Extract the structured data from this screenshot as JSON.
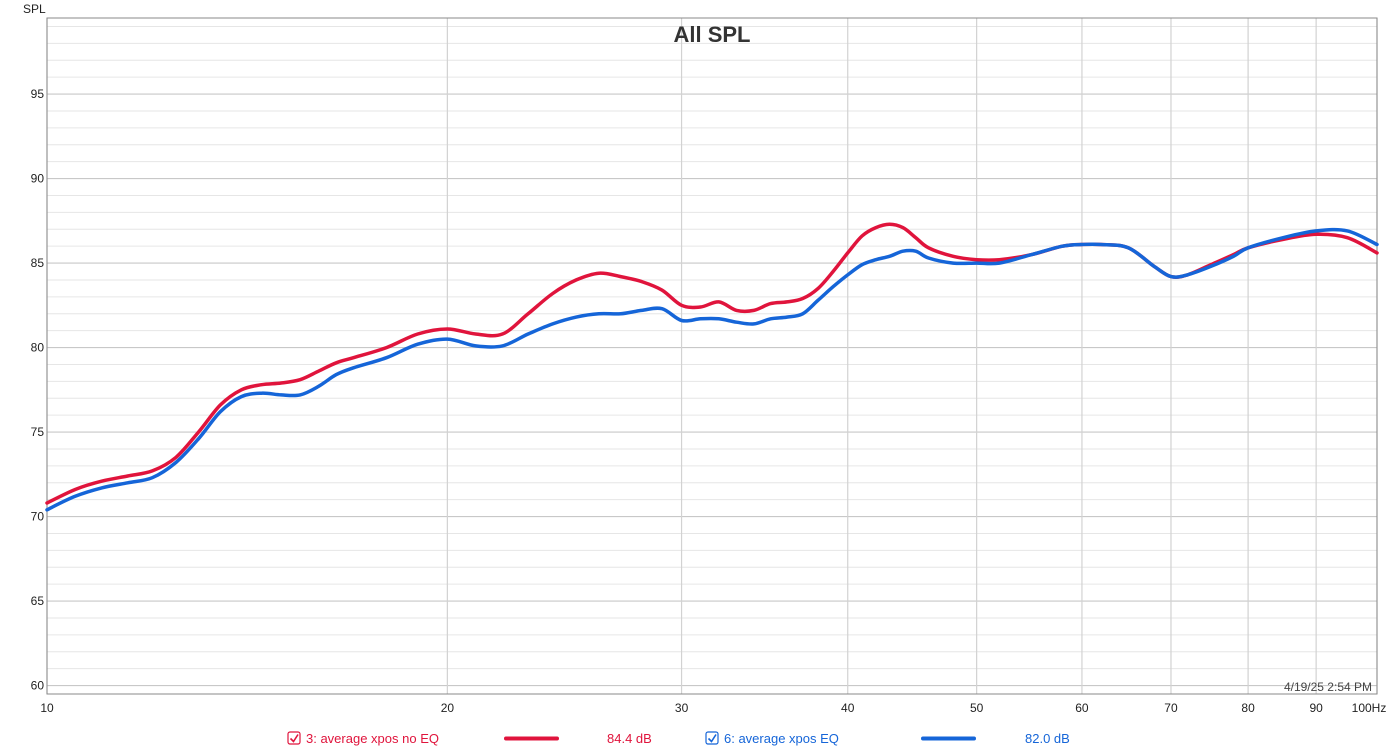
{
  "chart_data": {
    "type": "line",
    "title": "All SPL",
    "ylabel": "SPL",
    "xlabel": "Hz",
    "x_scale": "log",
    "xlim": [
      10,
      100
    ],
    "ylim": [
      59.5,
      99.5
    ],
    "x_ticks": [
      10,
      20,
      30,
      40,
      50,
      60,
      70,
      80,
      90,
      100
    ],
    "x_tick_labels": [
      "10",
      "20",
      "30",
      "40",
      "50",
      "60",
      "70",
      "80",
      "90",
      "100Hz"
    ],
    "y_ticks": [
      60,
      65,
      70,
      75,
      80,
      85,
      90,
      95
    ],
    "grid": true,
    "timestamp": "4/19/25 2:54 PM",
    "legend_position": "bottom",
    "series": [
      {
        "name": "3: average xpos no EQ",
        "level": "84.4 dB",
        "color": "#e0143c",
        "x": [
          10,
          10.5,
          11,
          11.5,
          12,
          12.5,
          13,
          13.5,
          14,
          14.5,
          15,
          15.5,
          16,
          16.5,
          17,
          18,
          19,
          20,
          21,
          22,
          23,
          24,
          25,
          26,
          27,
          28,
          29,
          30,
          31,
          32,
          33,
          34,
          35,
          36,
          37,
          38,
          39,
          40,
          41,
          42,
          43,
          44,
          45,
          46,
          48,
          50,
          52,
          55,
          58,
          60,
          62,
          65,
          68,
          70,
          72,
          75,
          78,
          80,
          85,
          90,
          95,
          100
        ],
        "y": [
          70.8,
          71.6,
          72.1,
          72.4,
          72.7,
          73.5,
          75.0,
          76.6,
          77.5,
          77.8,
          77.9,
          78.1,
          78.6,
          79.1,
          79.4,
          80.0,
          80.8,
          81.1,
          80.8,
          80.8,
          82.0,
          83.2,
          84.0,
          84.4,
          84.2,
          83.9,
          83.4,
          82.5,
          82.4,
          82.7,
          82.2,
          82.2,
          82.6,
          82.7,
          82.9,
          83.5,
          84.5,
          85.6,
          86.6,
          87.1,
          87.3,
          87.1,
          86.5,
          85.9,
          85.4,
          85.2,
          85.2,
          85.5,
          86.0,
          86.1,
          86.1,
          85.9,
          84.8,
          84.2,
          84.3,
          84.9,
          85.5,
          85.9,
          86.4,
          86.7,
          86.5,
          85.6
        ]
      },
      {
        "name": "6: average xpos EQ",
        "level": "82.0 dB",
        "color": "#1565d8",
        "x": [
          10,
          10.5,
          11,
          11.5,
          12,
          12.5,
          13,
          13.5,
          14,
          14.5,
          15,
          15.5,
          16,
          16.5,
          17,
          18,
          19,
          20,
          21,
          22,
          23,
          24,
          25,
          26,
          27,
          28,
          29,
          30,
          31,
          32,
          33,
          34,
          35,
          36,
          37,
          38,
          39,
          40,
          41,
          42,
          43,
          44,
          45,
          46,
          48,
          50,
          52,
          55,
          58,
          60,
          62,
          65,
          68,
          70,
          72,
          75,
          78,
          80,
          85,
          90,
          95,
          100
        ],
        "y": [
          70.4,
          71.2,
          71.7,
          72.0,
          72.3,
          73.2,
          74.6,
          76.2,
          77.1,
          77.3,
          77.2,
          77.2,
          77.7,
          78.4,
          78.8,
          79.4,
          80.2,
          80.5,
          80.1,
          80.1,
          80.8,
          81.4,
          81.8,
          82.0,
          82.0,
          82.2,
          82.3,
          81.6,
          81.7,
          81.7,
          81.5,
          81.4,
          81.7,
          81.8,
          82.0,
          82.8,
          83.6,
          84.3,
          84.9,
          85.2,
          85.4,
          85.7,
          85.7,
          85.3,
          85.0,
          85.0,
          85.0,
          85.5,
          86.0,
          86.1,
          86.1,
          85.9,
          84.8,
          84.2,
          84.3,
          84.8,
          85.4,
          85.9,
          86.5,
          86.9,
          86.9,
          86.1
        ]
      }
    ]
  }
}
